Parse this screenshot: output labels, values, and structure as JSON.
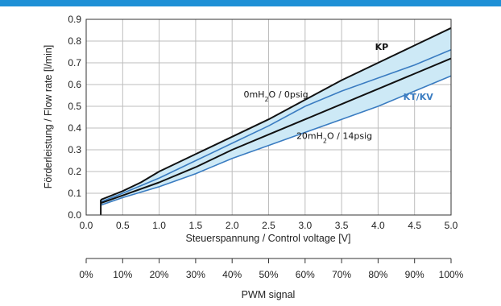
{
  "topbar": {
    "color": "#1e90d6"
  },
  "chart_data": {
    "type": "area",
    "xlabel": "Steuerspannung / Control voltage [V]",
    "ylabel": "Förderleistung / Flow rate [l/min]",
    "xlim": [
      0,
      5
    ],
    "ylim": [
      0,
      0.9
    ],
    "x_ticks": [
      "0.0",
      "0.5",
      "1.0",
      "1.5",
      "2.0",
      "2.5",
      "3.0",
      "3.5",
      "4.0",
      "4.5",
      "5.0"
    ],
    "y_ticks": [
      "0.0",
      "0.1",
      "0.2",
      "0.3",
      "0.4",
      "0.5",
      "0.6",
      "0.7",
      "0.8",
      "0.9"
    ],
    "grid": true,
    "secondary_axis": {
      "label": "PWM signal",
      "ticks": [
        "0%",
        "10%",
        "20%",
        "30%",
        "40%",
        "50%",
        "60%",
        "70%",
        "80%",
        "90%",
        "100%"
      ]
    },
    "series": [
      {
        "name": "KP",
        "color": "#111111",
        "points": [
          [
            0.2,
            0.07
          ],
          [
            0.5,
            0.11
          ],
          [
            0.75,
            0.15
          ],
          [
            1.0,
            0.2
          ],
          [
            1.5,
            0.28
          ],
          [
            2.0,
            0.36
          ],
          [
            2.5,
            0.44
          ],
          [
            3.0,
            0.53
          ],
          [
            3.5,
            0.62
          ],
          [
            4.0,
            0.7
          ],
          [
            4.5,
            0.78
          ],
          [
            5.0,
            0.86
          ]
        ]
      },
      {
        "name": "",
        "color": "#3a7cc1",
        "points": [
          [
            0.2,
            0.06
          ],
          [
            0.5,
            0.1
          ],
          [
            1.0,
            0.17
          ],
          [
            1.5,
            0.25
          ],
          [
            2.0,
            0.33
          ],
          [
            2.5,
            0.41
          ],
          [
            3.0,
            0.5
          ],
          [
            3.5,
            0.57
          ],
          [
            4.0,
            0.63
          ],
          [
            4.5,
            0.69
          ],
          [
            5.0,
            0.76
          ]
        ]
      },
      {
        "name": "",
        "color": "#111111",
        "points": [
          [
            0.2,
            0.055
          ],
          [
            0.5,
            0.09
          ],
          [
            1.0,
            0.15
          ],
          [
            1.5,
            0.22
          ],
          [
            2.0,
            0.3
          ],
          [
            2.5,
            0.37
          ],
          [
            3.0,
            0.44
          ],
          [
            3.5,
            0.51
          ],
          [
            4.0,
            0.58
          ],
          [
            4.5,
            0.65
          ],
          [
            5.0,
            0.72
          ]
        ]
      },
      {
        "name": "KT/KV",
        "color": "#3a7cc1",
        "points": [
          [
            0.2,
            0.045
          ],
          [
            0.5,
            0.08
          ],
          [
            1.0,
            0.13
          ],
          [
            1.5,
            0.19
          ],
          [
            2.0,
            0.26
          ],
          [
            2.5,
            0.32
          ],
          [
            3.0,
            0.38
          ],
          [
            3.5,
            0.44
          ],
          [
            4.0,
            0.5
          ],
          [
            4.5,
            0.57
          ],
          [
            5.0,
            0.64
          ]
        ]
      }
    ],
    "band_fill": "#cde9f6",
    "annotations": {
      "upper": {
        "base": "0mH",
        "sub": "2",
        "rest": "O / 0psig",
        "x": 2.6,
        "y": 0.54
      },
      "lower": {
        "base": "20mH",
        "sub": "2",
        "rest": "O / 14psig",
        "x": 3.4,
        "y": 0.35
      },
      "kp": {
        "text": "KP",
        "x": 4.05,
        "y": 0.76
      },
      "ktkv": {
        "text": "KT/KV",
        "x": 4.55,
        "y": 0.53
      }
    }
  }
}
